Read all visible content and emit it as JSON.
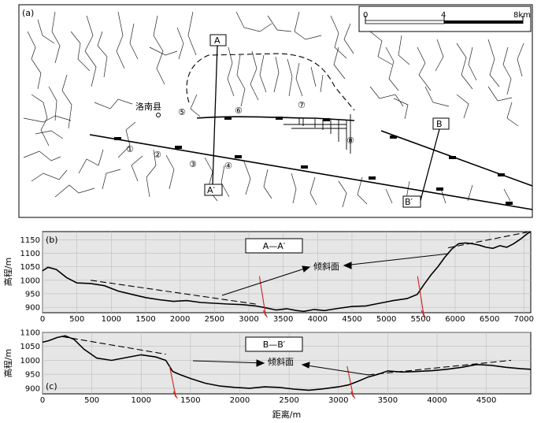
{
  "panel_a": {
    "label": "(a)",
    "scale": {
      "ticks": [
        "0",
        "4",
        "8km"
      ]
    },
    "county": "洛南县",
    "profile_labels": [
      "A",
      "A′",
      "B",
      "B′"
    ],
    "circled": [
      "①",
      "②",
      "③",
      "④",
      "⑤",
      "⑥",
      "⑦",
      "⑧"
    ]
  },
  "chart_data": [
    {
      "type": "line",
      "panel_label": "(b)",
      "title_box": "A—A′",
      "ylabel": "高程/m",
      "xlim": [
        0,
        7100
      ],
      "ylim": [
        880,
        1180
      ],
      "xticks": [
        0,
        500,
        1000,
        1500,
        2000,
        2500,
        3000,
        3500,
        4000,
        4500,
        5000,
        5500,
        6000,
        6500,
        7000
      ],
      "yticks": [
        900,
        950,
        1000,
        1050,
        1100,
        1150
      ],
      "annotation": "倾斜面",
      "profile": {
        "x": [
          0,
          80,
          200,
          350,
          500,
          700,
          900,
          1100,
          1300,
          1500,
          1700,
          1900,
          2100,
          2300,
          2500,
          2700,
          2900,
          3100,
          3250,
          3400,
          3550,
          3700,
          3800,
          3950,
          4100,
          4300,
          4500,
          4700,
          4900,
          5100,
          5300,
          5450,
          5550,
          5650,
          5750,
          5850,
          5950,
          6050,
          6150,
          6250,
          6350,
          6450,
          6550,
          6650,
          6750,
          6850,
          6950,
          7050,
          7100
        ],
        "y": [
          1035,
          1048,
          1040,
          1010,
          990,
          988,
          980,
          960,
          948,
          936,
          928,
          922,
          925,
          918,
          915,
          912,
          910,
          905,
          898,
          890,
          895,
          888,
          885,
          892,
          888,
          896,
          903,
          905,
          915,
          925,
          932,
          948,
          985,
          1020,
          1050,
          1085,
          1115,
          1135,
          1138,
          1135,
          1130,
          1122,
          1118,
          1128,
          1122,
          1135,
          1152,
          1172,
          1180
        ]
      },
      "dashed_surfaces": [
        {
          "x": [
            700,
            3100
          ],
          "y": [
            1000,
            912
          ]
        },
        {
          "x": [
            5900,
            7050
          ],
          "y": [
            1120,
            1178
          ]
        }
      ],
      "faults_x": [
        3200,
        5500
      ]
    },
    {
      "type": "line",
      "panel_label": "(c)",
      "title_box": "B—B′",
      "ylabel": "高程/m",
      "xlabel": "距离/m",
      "xlim": [
        0,
        4950
      ],
      "ylim": [
        880,
        1100
      ],
      "xticks": [
        0,
        500,
        1000,
        1500,
        2000,
        2500,
        3000,
        3500,
        4000,
        4500
      ],
      "yticks": [
        900,
        950,
        1000,
        1050,
        1100
      ],
      "annotation": "倾斜面",
      "profile": {
        "x": [
          0,
          60,
          150,
          230,
          320,
          420,
          550,
          700,
          850,
          1000,
          1150,
          1250,
          1320,
          1400,
          1500,
          1650,
          1800,
          1950,
          2100,
          2250,
          2400,
          2550,
          2700,
          2850,
          3000,
          3100,
          3200,
          3300,
          3400,
          3500,
          3650,
          3800,
          3950,
          4100,
          4250,
          4400,
          4550,
          4700,
          4850,
          4950
        ],
        "y": [
          1065,
          1070,
          1082,
          1088,
          1075,
          1040,
          1008,
          1000,
          1010,
          1020,
          1012,
          1000,
          960,
          948,
          935,
          918,
          908,
          903,
          900,
          905,
          903,
          897,
          893,
          898,
          905,
          912,
          925,
          940,
          950,
          962,
          958,
          960,
          963,
          968,
          975,
          985,
          982,
          975,
          970,
          968
        ]
      },
      "dashed_surfaces": [
        {
          "x": [
            200,
            1250
          ],
          "y": [
            1085,
            1022
          ]
        },
        {
          "x": [
            3300,
            4750
          ],
          "y": [
            948,
            1000
          ]
        }
      ],
      "faults_x": [
        1320,
        3120
      ]
    }
  ]
}
